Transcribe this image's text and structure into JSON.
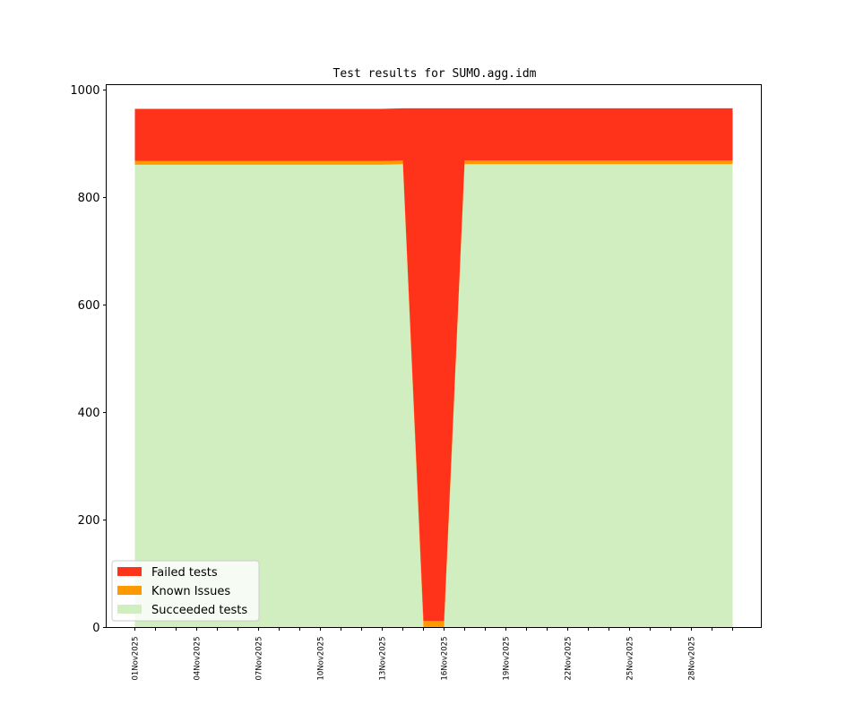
{
  "chart_data": {
    "type": "area",
    "title": "Test results for SUMO.agg.idm",
    "xlabel": "",
    "ylabel": "",
    "ylim": [
      0,
      1010
    ],
    "yticks": [
      0,
      200,
      400,
      600,
      800,
      1000
    ],
    "xtick_labels": [
      "01Nov2025",
      "04Nov2025",
      "07Nov2025",
      "10Nov2025",
      "13Nov2025",
      "16Nov2025",
      "19Nov2025",
      "22Nov2025",
      "25Nov2025",
      "28Nov2025"
    ],
    "x": [
      "01Nov2025",
      "02Nov2025",
      "03Nov2025",
      "04Nov2025",
      "05Nov2025",
      "06Nov2025",
      "07Nov2025",
      "08Nov2025",
      "09Nov2025",
      "10Nov2025",
      "11Nov2025",
      "12Nov2025",
      "13Nov2025",
      "14Nov2025",
      "15Nov2025",
      "16Nov2025",
      "17Nov2025",
      "18Nov2025",
      "19Nov2025",
      "20Nov2025",
      "21Nov2025",
      "22Nov2025",
      "23Nov2025",
      "24Nov2025",
      "25Nov2025",
      "26Nov2025",
      "27Nov2025",
      "28Nov2025",
      "29Nov2025",
      "30Nov2025"
    ],
    "stacked": true,
    "series": [
      {
        "name": "Succeeded tests",
        "color": "#d0eec0",
        "values": [
          861,
          861,
          861,
          861,
          861,
          861,
          861,
          861,
          861,
          861,
          861,
          861,
          861,
          862,
          0,
          0,
          862,
          862,
          862,
          862,
          862,
          862,
          862,
          862,
          862,
          862,
          862,
          862,
          862,
          862
        ]
      },
      {
        "name": "Known Issues",
        "color": "#ff9900",
        "values": [
          7,
          7,
          7,
          7,
          7,
          7,
          7,
          7,
          7,
          7,
          7,
          7,
          7,
          7,
          12,
          12,
          7,
          7,
          7,
          7,
          7,
          7,
          7,
          7,
          7,
          7,
          7,
          7,
          7,
          7
        ]
      },
      {
        "name": "Failed tests",
        "color": "#ff331a",
        "values": [
          97,
          97,
          97,
          97,
          97,
          97,
          97,
          97,
          97,
          97,
          97,
          97,
          97,
          97,
          954,
          954,
          97,
          97,
          97,
          97,
          97,
          97,
          97,
          97,
          97,
          97,
          97,
          97,
          97,
          97
        ]
      }
    ],
    "legend": {
      "location": "lower-left",
      "entries": [
        "Failed tests",
        "Known Issues",
        "Succeeded tests"
      ]
    },
    "grid": false
  }
}
